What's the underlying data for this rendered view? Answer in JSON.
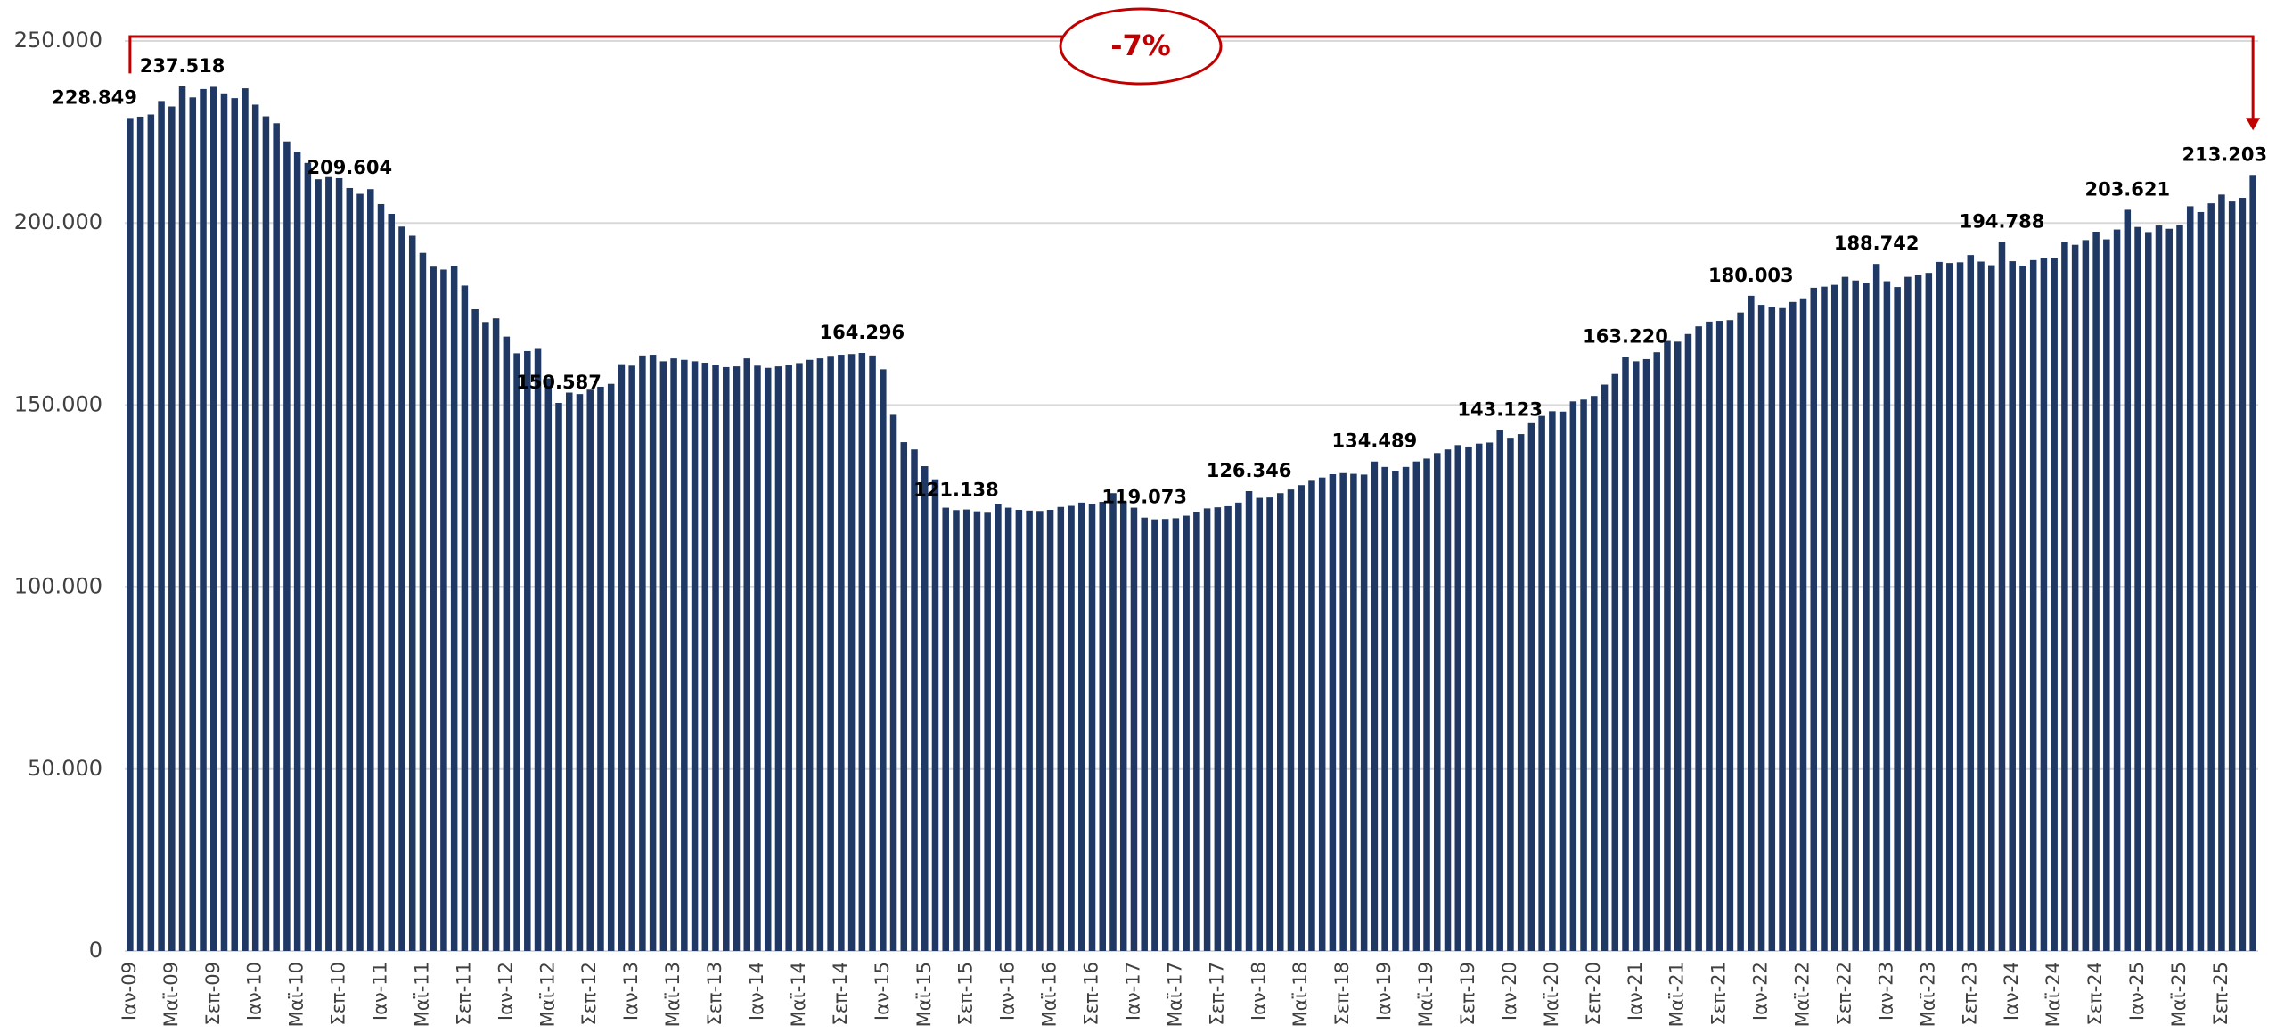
{
  "chart_data": {
    "type": "bar",
    "categories": [
      "Ιαν-09",
      null,
      null,
      null,
      "Μαϊ-09",
      null,
      null,
      null,
      "Σεπ-09",
      null,
      null,
      null,
      "Ιαν-10",
      null,
      null,
      null,
      "Μαϊ-10",
      null,
      null,
      null,
      "Σεπ-10",
      null,
      null,
      null,
      "Ιαν-11",
      null,
      null,
      null,
      "Μαϊ-11",
      null,
      null,
      null,
      "Σεπ-11",
      null,
      null,
      null,
      "Ιαν-12",
      null,
      null,
      null,
      "Μαϊ-12",
      null,
      null,
      null,
      "Σεπ-12",
      null,
      null,
      null,
      "Ιαν-13",
      null,
      null,
      null,
      "Μαϊ-13",
      null,
      null,
      null,
      "Σεπ-13",
      null,
      null,
      null,
      "Ιαν-14",
      null,
      null,
      null,
      "Μαϊ-14",
      null,
      null,
      null,
      "Σεπ-14",
      null,
      null,
      null,
      "Ιαν-15",
      null,
      null,
      null,
      "Μαϊ-15",
      null,
      null,
      null,
      "Σεπ-15",
      null,
      null,
      null,
      "Ιαν-16",
      null,
      null,
      null,
      "Μαϊ-16",
      null,
      null,
      null,
      "Σεπ-16",
      null,
      null,
      null,
      "Ιαν-17",
      null,
      null,
      null,
      "Μαϊ-17",
      null,
      null,
      null,
      "Σεπ-17",
      null,
      null,
      null,
      "Ιαν-18",
      null,
      null,
      null,
      "Μαϊ-18",
      null,
      null,
      null,
      "Σεπ-18",
      null,
      null,
      null,
      "Ιαν-19",
      null,
      null,
      null,
      "Μαϊ-19",
      null,
      null,
      null,
      "Σεπ-19",
      null,
      null,
      null,
      "Ιαν-20",
      null,
      null,
      null,
      "Μαϊ-20",
      null,
      null,
      null,
      "Σεπ-20",
      null,
      null,
      null,
      "Ιαν-21",
      null,
      null,
      null,
      "Μαϊ-21",
      null,
      null,
      null,
      "Σεπ-21",
      null,
      null,
      null,
      "Ιαν-22",
      null,
      null,
      null,
      "Μαϊ-22",
      null,
      null,
      null,
      "Σεπ-22",
      null,
      null,
      null,
      "Ιαν-23",
      null,
      null,
      null,
      "Μαϊ-23",
      null,
      null,
      null,
      "Σεπ-23",
      null,
      null,
      null,
      "Ιαν-24",
      null,
      null,
      null,
      "Μαϊ-24",
      null,
      null,
      null,
      "Σεπ-24",
      null,
      null,
      null,
      "Ιαν-25",
      null,
      null,
      null,
      "Μαϊ-25",
      null,
      null,
      null,
      "Σεπ-25",
      null,
      null,
      null
    ],
    "values": [
      228849,
      229200,
      229800,
      233500,
      232000,
      237518,
      234500,
      236800,
      237400,
      235600,
      234300,
      237000,
      232500,
      229300,
      227400,
      222400,
      219600,
      216500,
      212000,
      212600,
      212300,
      209604,
      208000,
      209300,
      205200,
      202500,
      199000,
      196500,
      191800,
      188000,
      187200,
      188200,
      182800,
      176300,
      172800,
      173800,
      168800,
      164200,
      164800,
      165400,
      157300,
      150587,
      153400,
      153000,
      154200,
      155000,
      155800,
      161200,
      160800,
      163600,
      163800,
      162000,
      162800,
      162400,
      162000,
      161600,
      161000,
      160400,
      160600,
      162800,
      160800,
      160200,
      160600,
      161000,
      161500,
      162400,
      162800,
      163500,
      163800,
      164000,
      164296,
      163600,
      159800,
      147300,
      139800,
      137800,
      133200,
      129600,
      121800,
      121138,
      121300,
      120800,
      120400,
      122700,
      121800,
      121200,
      121000,
      120900,
      121200,
      122000,
      122300,
      123200,
      122900,
      123400,
      125800,
      123500,
      121800,
      119073,
      118600,
      118700,
      118900,
      119600,
      120600,
      121600,
      121900,
      122200,
      123200,
      126346,
      124500,
      124600,
      125800,
      126800,
      128000,
      129200,
      130100,
      131000,
      131300,
      131100,
      130900,
      134489,
      133000,
      131900,
      133000,
      134500,
      135300,
      136800,
      137800,
      139000,
      138600,
      139400,
      139700,
      143123,
      141000,
      142000,
      145000,
      147000,
      148300,
      148200,
      151000,
      151500,
      152500,
      155600,
      158500,
      163220,
      162000,
      162600,
      164500,
      167600,
      167400,
      169500,
      171600,
      172900,
      173100,
      173300,
      175400,
      180003,
      177500,
      177000,
      176600,
      178300,
      179300,
      182200,
      182500,
      183000,
      185200,
      184200,
      183600,
      188742,
      184000,
      182400,
      185200,
      185700,
      186300,
      189300,
      189000,
      189200,
      191200,
      189400,
      188400,
      194788,
      189500,
      188300,
      189800,
      190400,
      190500,
      194700,
      194000,
      195300,
      197600,
      195500,
      198200,
      203621,
      198900,
      197500,
      199300,
      198400,
      199400,
      204600,
      203000,
      205400,
      207800,
      205900,
      206900,
      213203
    ],
    "value_labels": [
      "228.849",
      null,
      null,
      null,
      null,
      "237.518",
      null,
      null,
      null,
      null,
      null,
      null,
      null,
      null,
      null,
      null,
      null,
      null,
      null,
      null,
      null,
      "209.604",
      null,
      null,
      null,
      null,
      null,
      null,
      null,
      null,
      null,
      null,
      null,
      null,
      null,
      null,
      null,
      null,
      null,
      null,
      null,
      "150.587",
      null,
      null,
      null,
      null,
      null,
      null,
      null,
      null,
      null,
      null,
      null,
      null,
      null,
      null,
      null,
      null,
      null,
      null,
      null,
      null,
      null,
      null,
      null,
      null,
      null,
      null,
      null,
      null,
      "164.296",
      null,
      null,
      null,
      null,
      null,
      null,
      null,
      null,
      "121.138",
      null,
      null,
      null,
      null,
      null,
      null,
      null,
      null,
      null,
      null,
      null,
      null,
      null,
      null,
      null,
      null,
      null,
      "119.073",
      null,
      null,
      null,
      null,
      null,
      null,
      null,
      null,
      null,
      "126.346",
      null,
      null,
      null,
      null,
      null,
      null,
      null,
      null,
      null,
      null,
      null,
      "134.489",
      null,
      null,
      null,
      null,
      null,
      null,
      null,
      null,
      null,
      null,
      null,
      "143.123",
      null,
      null,
      null,
      null,
      null,
      null,
      null,
      null,
      null,
      null,
      null,
      "163.220",
      null,
      null,
      null,
      null,
      null,
      null,
      null,
      null,
      null,
      null,
      null,
      "180.003",
      null,
      null,
      null,
      null,
      null,
      null,
      null,
      null,
      null,
      null,
      null,
      "188.742",
      null,
      null,
      null,
      null,
      null,
      null,
      null,
      null,
      null,
      null,
      null,
      "194.788",
      null,
      null,
      null,
      null,
      null,
      null,
      null,
      null,
      null,
      null,
      null,
      "203.621",
      null,
      null,
      null,
      null,
      null,
      null,
      null,
      null,
      null,
      null,
      null,
      "213.203"
    ],
    "color": "#1f3864",
    "ylim": [
      0,
      250000
    ],
    "yticks": [
      0,
      {
        "value": 50000,
        "label": "50.000"
      },
      {
        "value": 100000,
        "label": "100.000"
      },
      {
        "value": 150000,
        "label": "150.000"
      },
      {
        "value": 200000,
        "label": "200.000"
      },
      {
        "value": 250000,
        "label": "250.000"
      }
    ],
    "grid": true,
    "annotation": "-7%",
    "annotation_color": "#c00000"
  }
}
